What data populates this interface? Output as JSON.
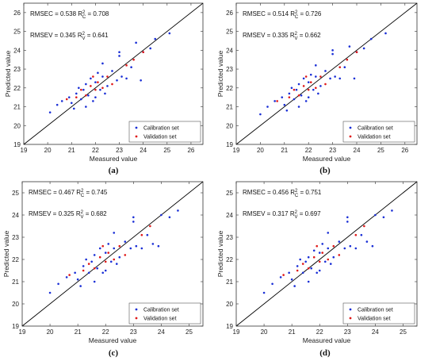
{
  "chart_data": [
    {
      "type": "scatter",
      "caption": "(a)",
      "xlabel": "Measured value",
      "ylabel": "Predicted value",
      "xlim": [
        19,
        26.5
      ],
      "ylim": [
        19,
        26.5
      ],
      "xticks": [
        "19",
        "20",
        "21",
        "22",
        "23",
        "24",
        "25",
        "26"
      ],
      "yticks": [
        "19",
        "20",
        "21",
        "22",
        "23",
        "24",
        "25",
        "26"
      ],
      "stats": {
        "rmsec": "0.538",
        "r2c": "0.708",
        "rmsev": "0.345",
        "r2v": "0.641"
      },
      "legend": [
        "Calibration set",
        "Validation set"
      ],
      "legend_position": "bottom-right",
      "colors": {
        "calibration": "#1a2fd6",
        "validation": "#e01818",
        "line": "#000000"
      },
      "calibration": [
        [
          20.1,
          20.7
        ],
        [
          20.4,
          21.1
        ],
        [
          20.6,
          21.3
        ],
        [
          20.9,
          21.5
        ],
        [
          21.0,
          21.2
        ],
        [
          21.1,
          20.9
        ],
        [
          21.2,
          21.7
        ],
        [
          21.3,
          22.0
        ],
        [
          21.4,
          21.4
        ],
        [
          21.5,
          21.9
        ],
        [
          21.6,
          22.2
        ],
        [
          21.7,
          21.6
        ],
        [
          21.8,
          22.5
        ],
        [
          21.9,
          21.3
        ],
        [
          22.0,
          22.3
        ],
        [
          22.1,
          22.8
        ],
        [
          22.2,
          21.9
        ],
        [
          22.3,
          22.6
        ],
        [
          22.4,
          21.7
        ],
        [
          22.5,
          22.1
        ],
        [
          22.7,
          22.9
        ],
        [
          22.9,
          22.4
        ],
        [
          23.0,
          23.9
        ],
        [
          23.0,
          23.7
        ],
        [
          23.1,
          22.6
        ],
        [
          23.3,
          22.5
        ],
        [
          23.5,
          23.1
        ],
        [
          23.7,
          24.4
        ],
        [
          23.9,
          22.4
        ],
        [
          24.0,
          23.9
        ],
        [
          24.3,
          24.1
        ],
        [
          24.5,
          24.6
        ],
        [
          25.1,
          24.9
        ],
        [
          22.0,
          21.5
        ],
        [
          21.6,
          21.0
        ],
        [
          22.3,
          23.3
        ]
      ],
      "validation": [
        [
          20.8,
          21.4
        ],
        [
          21.2,
          21.5
        ],
        [
          21.4,
          21.9
        ],
        [
          21.6,
          21.6
        ],
        [
          21.8,
          22.1
        ],
        [
          22.0,
          21.9
        ],
        [
          22.1,
          22.3
        ],
        [
          22.3,
          22.0
        ],
        [
          22.5,
          22.6
        ],
        [
          22.7,
          22.2
        ],
        [
          23.3,
          23.2
        ],
        [
          23.6,
          23.5
        ],
        [
          24.0,
          23.9
        ],
        [
          21.9,
          22.6
        ]
      ]
    },
    {
      "type": "scatter",
      "caption": "(b)",
      "xlabel": "Measured value",
      "ylabel": "Predicted value",
      "xlim": [
        19,
        26.5
      ],
      "ylim": [
        19,
        26.5
      ],
      "xticks": [
        "19",
        "20",
        "21",
        "22",
        "23",
        "24",
        "25",
        "26"
      ],
      "yticks": [
        "19",
        "20",
        "21",
        "22",
        "23",
        "24",
        "25",
        "26"
      ],
      "stats": {
        "rmsec": "0.514",
        "r2c": "0.726",
        "rmsev": "0.335",
        "r2v": "0.662"
      },
      "legend": [
        "Calibration set",
        "Validation set"
      ],
      "legend_position": "bottom-right",
      "colors": {
        "calibration": "#1a2fd6",
        "validation": "#e01818",
        "line": "#000000"
      },
      "calibration": [
        [
          20.0,
          20.6
        ],
        [
          20.3,
          21.0
        ],
        [
          20.6,
          21.3
        ],
        [
          20.9,
          21.5
        ],
        [
          21.0,
          21.1
        ],
        [
          21.1,
          20.8
        ],
        [
          21.2,
          21.7
        ],
        [
          21.3,
          22.0
        ],
        [
          21.4,
          21.4
        ],
        [
          21.5,
          21.9
        ],
        [
          21.6,
          22.2
        ],
        [
          21.7,
          21.6
        ],
        [
          21.8,
          22.5
        ],
        [
          21.9,
          21.3
        ],
        [
          22.0,
          22.3
        ],
        [
          22.1,
          22.7
        ],
        [
          22.2,
          21.9
        ],
        [
          22.3,
          22.6
        ],
        [
          22.4,
          21.7
        ],
        [
          22.5,
          22.1
        ],
        [
          22.7,
          22.9
        ],
        [
          22.9,
          22.5
        ],
        [
          23.0,
          24.0
        ],
        [
          23.0,
          23.8
        ],
        [
          23.1,
          22.6
        ],
        [
          23.3,
          22.5
        ],
        [
          23.5,
          23.1
        ],
        [
          23.7,
          24.2
        ],
        [
          23.9,
          22.5
        ],
        [
          24.0,
          23.9
        ],
        [
          24.3,
          24.1
        ],
        [
          24.6,
          24.6
        ],
        [
          25.2,
          24.9
        ],
        [
          22.0,
          21.5
        ],
        [
          21.6,
          21.0
        ],
        [
          22.3,
          23.2
        ]
      ],
      "validation": [
        [
          20.7,
          21.3
        ],
        [
          21.2,
          21.5
        ],
        [
          21.4,
          21.9
        ],
        [
          21.6,
          21.6
        ],
        [
          21.8,
          22.1
        ],
        [
          22.0,
          21.9
        ],
        [
          22.1,
          22.3
        ],
        [
          22.3,
          22.0
        ],
        [
          22.5,
          22.6
        ],
        [
          22.7,
          22.2
        ],
        [
          23.3,
          23.1
        ],
        [
          23.6,
          23.5
        ],
        [
          24.0,
          23.9
        ],
        [
          21.9,
          22.6
        ]
      ]
    },
    {
      "type": "scatter",
      "caption": "(c)",
      "xlabel": "Measured value",
      "ylabel": "Predicted value",
      "xlim": [
        19,
        25.5
      ],
      "ylim": [
        19,
        25.5
      ],
      "xticks": [
        "19",
        "20",
        "21",
        "22",
        "23",
        "24",
        "25"
      ],
      "yticks": [
        "19",
        "20",
        "21",
        "22",
        "23",
        "24",
        "25"
      ],
      "stats": {
        "rmsec": "0.467",
        "r2c": "0.745",
        "rmsev": "0.325",
        "r2v": "0.682"
      },
      "legend": [
        "Calibration set",
        "Validation set"
      ],
      "legend_position": "bottom-right",
      "colors": {
        "calibration": "#1a2fd6",
        "validation": "#e01818",
        "line": "#000000"
      },
      "calibration": [
        [
          20.0,
          20.5
        ],
        [
          20.3,
          20.9
        ],
        [
          20.6,
          21.2
        ],
        [
          20.9,
          21.4
        ],
        [
          21.0,
          21.1
        ],
        [
          21.1,
          20.8
        ],
        [
          21.2,
          21.7
        ],
        [
          21.3,
          22.0
        ],
        [
          21.4,
          21.4
        ],
        [
          21.5,
          21.9
        ],
        [
          21.6,
          22.2
        ],
        [
          21.7,
          21.6
        ],
        [
          21.8,
          22.5
        ],
        [
          21.9,
          21.4
        ],
        [
          22.0,
          22.3
        ],
        [
          22.1,
          22.7
        ],
        [
          22.2,
          21.9
        ],
        [
          22.3,
          22.5
        ],
        [
          22.4,
          21.8
        ],
        [
          22.5,
          22.1
        ],
        [
          22.7,
          22.8
        ],
        [
          22.9,
          22.5
        ],
        [
          23.0,
          23.9
        ],
        [
          23.0,
          23.7
        ],
        [
          23.1,
          22.6
        ],
        [
          23.3,
          22.5
        ],
        [
          23.5,
          23.1
        ],
        [
          23.7,
          22.7
        ],
        [
          23.9,
          22.6
        ],
        [
          24.0,
          24.0
        ],
        [
          24.3,
          23.9
        ],
        [
          24.6,
          24.2
        ],
        [
          22.0,
          21.5
        ],
        [
          21.6,
          21.0
        ],
        [
          22.3,
          23.2
        ]
      ],
      "validation": [
        [
          20.7,
          21.3
        ],
        [
          21.2,
          21.5
        ],
        [
          21.4,
          21.8
        ],
        [
          21.6,
          21.6
        ],
        [
          21.8,
          22.1
        ],
        [
          22.0,
          21.9
        ],
        [
          22.1,
          22.3
        ],
        [
          22.3,
          22.0
        ],
        [
          22.5,
          22.6
        ],
        [
          22.7,
          22.2
        ],
        [
          23.3,
          23.1
        ],
        [
          23.6,
          23.5
        ],
        [
          21.9,
          22.6
        ]
      ]
    },
    {
      "type": "scatter",
      "caption": "(d)",
      "xlabel": "Measured value",
      "ylabel": "Predicted value",
      "xlim": [
        19,
        25.5
      ],
      "ylim": [
        19,
        25.5
      ],
      "xticks": [
        "19",
        "20",
        "21",
        "22",
        "23",
        "24",
        "25"
      ],
      "yticks": [
        "19",
        "20",
        "21",
        "22",
        "23",
        "24",
        "25"
      ],
      "stats": {
        "rmsec": "0.456",
        "r2c": "0.751",
        "rmsev": "0.317",
        "r2v": "0.697"
      },
      "legend": [
        "Calibration set",
        "Validation set"
      ],
      "legend_position": "bottom-right",
      "colors": {
        "calibration": "#1a2fd6",
        "validation": "#e01818",
        "line": "#000000"
      },
      "calibration": [
        [
          20.0,
          20.5
        ],
        [
          20.3,
          20.9
        ],
        [
          20.6,
          21.2
        ],
        [
          20.9,
          21.4
        ],
        [
          21.0,
          21.1
        ],
        [
          21.1,
          20.8
        ],
        [
          21.2,
          21.7
        ],
        [
          21.3,
          22.0
        ],
        [
          21.4,
          21.4
        ],
        [
          21.5,
          21.9
        ],
        [
          21.6,
          22.1
        ],
        [
          21.7,
          21.6
        ],
        [
          21.8,
          22.4
        ],
        [
          21.9,
          21.4
        ],
        [
          22.0,
          22.3
        ],
        [
          22.1,
          22.7
        ],
        [
          22.2,
          21.9
        ],
        [
          22.3,
          22.5
        ],
        [
          22.4,
          21.8
        ],
        [
          22.5,
          22.1
        ],
        [
          22.7,
          22.8
        ],
        [
          22.9,
          22.5
        ],
        [
          23.0,
          23.9
        ],
        [
          23.0,
          23.7
        ],
        [
          23.1,
          22.6
        ],
        [
          23.3,
          22.5
        ],
        [
          23.5,
          23.1
        ],
        [
          23.7,
          22.8
        ],
        [
          23.9,
          22.6
        ],
        [
          24.0,
          24.0
        ],
        [
          24.3,
          23.9
        ],
        [
          24.6,
          24.2
        ],
        [
          22.0,
          21.5
        ],
        [
          21.6,
          21.0
        ],
        [
          22.3,
          23.2
        ]
      ],
      "validation": [
        [
          20.7,
          21.3
        ],
        [
          21.2,
          21.5
        ],
        [
          21.4,
          21.8
        ],
        [
          21.6,
          21.6
        ],
        [
          21.8,
          22.1
        ],
        [
          22.0,
          21.9
        ],
        [
          22.1,
          22.3
        ],
        [
          22.3,
          22.0
        ],
        [
          22.5,
          22.6
        ],
        [
          22.7,
          22.2
        ],
        [
          23.3,
          23.1
        ],
        [
          23.6,
          23.5
        ],
        [
          21.9,
          22.6
        ]
      ]
    }
  ]
}
